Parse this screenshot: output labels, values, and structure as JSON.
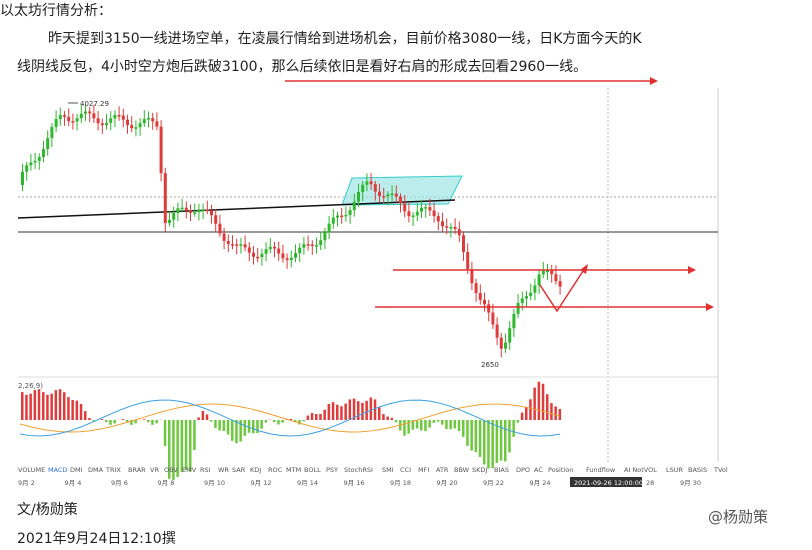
{
  "article": {
    "heading": "以太坊行情分析：",
    "paragraph_lines": [
      "昨天提到3150一线进场空单，在凌晨行情给到进场机会，目前价格3080一线，日K方面今天的K",
      "线阴线反包，4小时空方炮后跌破3100，那么后续依旧是看好右肩的形成去回看2960一线。"
    ],
    "author": "文/杨勋策",
    "date": "2021年9月24日12:10撰"
  },
  "chart": {
    "high_label": "4027.29",
    "low_label": "2650",
    "indicator_label": "2,26,9)",
    "tabs": [
      "VOLUME",
      "MACD",
      "DMI",
      "DMA",
      "TRIX",
      "BRAR",
      "VR",
      "OBV",
      "EMV",
      "RSI",
      "WR",
      "SAR",
      "KDJ",
      "ROC",
      "MTM",
      "BOLL",
      "PSY",
      "StochRSI",
      "SMI",
      "CCI",
      "MFI",
      "ATR",
      "BBW",
      "SKDJ",
      "BIAS",
      "DPO",
      "AC",
      "Position",
      "Fundflow",
      "AI NotVOL",
      "LSUR",
      "BASIS",
      "TVol"
    ],
    "dates": [
      "9月 2",
      "9月 4",
      "9月 6",
      "9月 8",
      "9月 10",
      "9月 12",
      "9月 14",
      "9月 16",
      "9月 18",
      "9月 20",
      "9月 22",
      "9月 24"
    ],
    "cursor_date": "2021-09-26 12:00:00",
    "later_dates": [
      "28",
      "9月 30"
    ]
  },
  "watermark": "@杨勋策"
}
